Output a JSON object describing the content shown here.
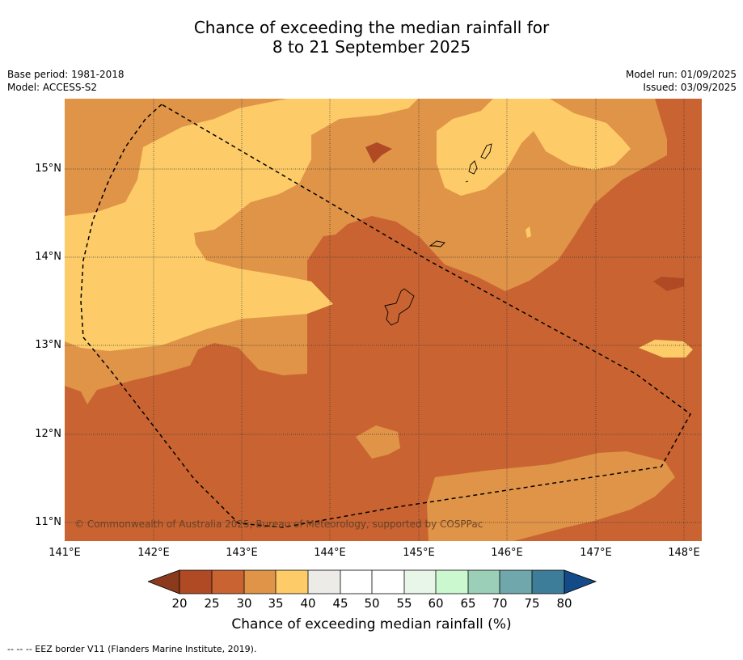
{
  "title": {
    "line1": "Chance of exceeding the median rainfall for",
    "line2": "8 to 21 September 2025"
  },
  "meta": {
    "base_period": "Base period: 1981-2018",
    "model": "Model: ACCESS-S2",
    "model_run": "Model run: 01/09/2025",
    "issued": "Issued: 03/09/2025"
  },
  "map": {
    "lat_labels": [
      "15°N",
      "14°N",
      "13°N",
      "12°N",
      "11°N"
    ],
    "lon_labels": [
      "141°E",
      "142°E",
      "143°E",
      "144°E",
      "145°E",
      "146°E",
      "147°E",
      "148°E"
    ],
    "copyright": "© Commonwealth of Australia 2025, Bureau of Meteorology, supported by COSPPac",
    "colors": {
      "lt20": "#8b3a1d",
      "20_25": "#b04a24",
      "25_30": "#c96432",
      "30_35": "#e09448",
      "35_40": "#fdcc68",
      "40_45": "#ecebe8",
      "45_55": "#ffffff",
      "55_60": "#e8f6ea",
      "60_65": "#ccf8d0",
      "65_70": "#9bcfb8",
      "70_75": "#6fa7ad",
      "75_80": "#3e7d99",
      "gt80": "#134b88"
    }
  },
  "colorbar": {
    "ticks": [
      "20",
      "25",
      "30",
      "35",
      "40",
      "45",
      "50",
      "55",
      "60",
      "65",
      "70",
      "75",
      "80"
    ],
    "title": "Chance of exceeding median rainfall (%)"
  },
  "footnote": "--  --  -- EEZ border V11 (Flanders Marine Institute, 2019)."
}
